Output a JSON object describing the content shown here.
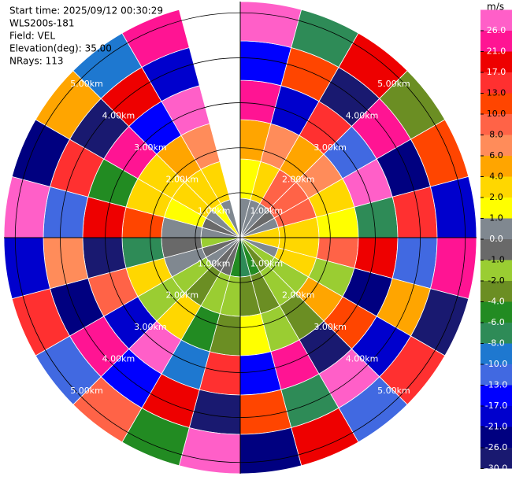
{
  "chart_data": {
    "type": "ppi",
    "header": [
      "Start time: 2025/09/12 00:30:29",
      "WLS200s-181",
      "Field: VEL",
      "Elevation(deg): 35.00",
      "NRays: 113"
    ],
    "rlim": [
      0,
      5.25
    ],
    "rticks": [
      {
        "value": 1,
        "label": "1.00km"
      },
      {
        "value": 2,
        "label": "2.00km"
      },
      {
        "value": 3,
        "label": "3.00km"
      },
      {
        "value": 4,
        "label": "4.00km"
      },
      {
        "value": 5,
        "label": "5.00km"
      }
    ],
    "values": [
      [
        0.5,
        1.5,
        5,
        23,
        -15,
        28
      ],
      [
        0.5,
        3,
        7,
        -19,
        11.5,
        -7
      ],
      [
        0.5,
        9,
        5,
        15,
        -28,
        19
      ],
      [
        -0.5,
        9,
        7,
        -11,
        23,
        -3
      ],
      [
        0.5,
        9,
        3,
        28,
        -23,
        11.5
      ],
      [
        3,
        3,
        1.5,
        -7,
        15,
        -19
      ],
      [
        3,
        3,
        9,
        19,
        -11,
        23
      ],
      [
        0.5,
        3,
        -1.5,
        -23,
        5,
        -28
      ],
      [
        -1.5,
        -1.5,
        5,
        11.5,
        -19,
        15
      ],
      [
        -3,
        -1.5,
        -3,
        -28,
        28,
        -11
      ],
      [
        -5,
        -3,
        -1.5,
        23,
        -7,
        19
      ],
      [
        -7,
        -3,
        1.5,
        -15,
        11.5,
        -23
      ],
      [
        -5,
        -1.5,
        -3,
        15,
        -28,
        28
      ],
      [
        -0.5,
        -1.5,
        -5,
        -9,
        19,
        -5
      ],
      [
        -0.5,
        -3,
        3,
        28,
        -15,
        9
      ],
      [
        0.5,
        -1.5,
        -1.5,
        -19,
        23,
        -11
      ],
      [
        -0.5,
        0.5,
        3,
        9,
        -23,
        15
      ],
      [
        -1.5,
        -0.5,
        -7,
        -28,
        7,
        -19
      ],
      [
        0.5,
        0.5,
        11.5,
        19,
        -11,
        28
      ],
      [
        -0.5,
        1.5,
        3,
        -5,
        15,
        -23
      ],
      [
        0.5,
        3,
        3,
        23,
        -28,
        5
      ],
      [
        1.5,
        3,
        5,
        -15,
        19,
        -9
      ],
      [
        0.5,
        3,
        7,
        28,
        -19,
        23
      ],
      [
        null,
        null,
        null,
        null,
        null,
        null
      ]
    ],
    "colorbar": {
      "title": "m/s",
      "ticks": [
        {
          "value": 26,
          "label": "26.0"
        },
        {
          "value": 21,
          "label": "21.0"
        },
        {
          "value": 17,
          "label": "17.0"
        },
        {
          "value": 13,
          "label": "13.0"
        },
        {
          "value": 10,
          "label": "10.0"
        },
        {
          "value": 8,
          "label": "8.0"
        },
        {
          "value": 6,
          "label": "6.0"
        },
        {
          "value": 4,
          "label": "4.0"
        },
        {
          "value": 2,
          "label": "2.0"
        },
        {
          "value": 1,
          "label": "1.0"
        },
        {
          "value": 0,
          "label": "0.0"
        },
        {
          "value": -1,
          "label": "-1.0"
        },
        {
          "value": -2,
          "label": "-2.0"
        },
        {
          "value": -4,
          "label": "-4.0"
        },
        {
          "value": -6,
          "label": "-6.0"
        },
        {
          "value": -8,
          "label": "-8.0"
        },
        {
          "value": -10,
          "label": "-10.0"
        },
        {
          "value": -13,
          "label": "-13.0"
        },
        {
          "value": -17,
          "label": "-17.0"
        },
        {
          "value": -21,
          "label": "-21.0"
        },
        {
          "value": -26,
          "label": "-26.0"
        },
        {
          "value": -30,
          "label": "-30.0"
        }
      ],
      "colors": [
        "#ff5fc8",
        "#ff1493",
        "#ee0000",
        "#ff3030",
        "#ff4500",
        "#ff6347",
        "#ff8c5a",
        "#ffa500",
        "#ffd700",
        "#ffff00",
        "#808890",
        "#696969",
        "#9acd32",
        "#6b8e23",
        "#228b22",
        "#2e8b57",
        "#1e78d0",
        "#4169e1",
        "#0000ff",
        "#0000cd",
        "#000080",
        "#191970"
      ]
    }
  }
}
